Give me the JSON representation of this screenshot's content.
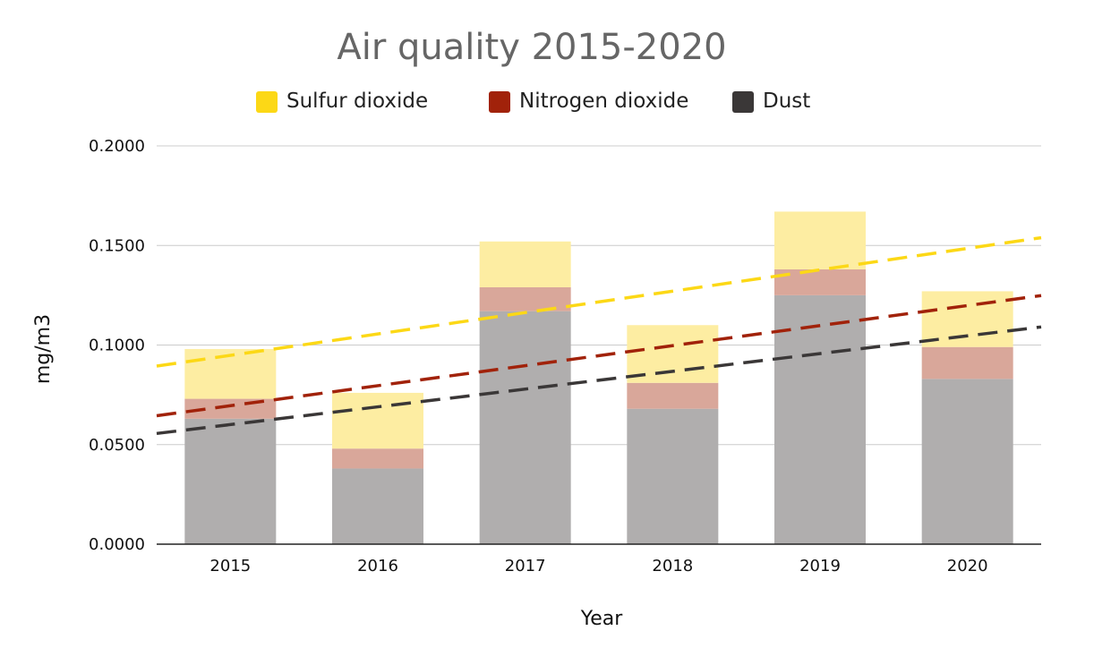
{
  "chart_data": {
    "type": "bar",
    "stacked": true,
    "title": "Air quality 2015-2020",
    "xlabel": "Year",
    "ylabel": "mg/m3",
    "ylim": [
      0,
      0.2
    ],
    "yticks": [
      "0.0000",
      "0.0500",
      "0.1000",
      "0.1500",
      "0.2000"
    ],
    "grid": true,
    "legend_position": "top",
    "categories": [
      "2015",
      "2016",
      "2017",
      "2018",
      "2019",
      "2020"
    ],
    "series": [
      {
        "name": "Dust",
        "values": [
          0.063,
          0.038,
          0.117,
          0.068,
          0.125,
          0.083
        ],
        "color": "#b0aeae",
        "legend_color": "#3a3737",
        "trend_color": "#3a3737"
      },
      {
        "name": "Nitrogen dioxide",
        "values": [
          0.01,
          0.01,
          0.012,
          0.013,
          0.013,
          0.016
        ],
        "color": "#d9a79a",
        "legend_color": "#a1220a",
        "trend_color": "#a1220a"
      },
      {
        "name": "Sulfur dioxide",
        "values": [
          0.025,
          0.028,
          0.023,
          0.029,
          0.029,
          0.028
        ],
        "color": "#fdeda2",
        "legend_color": "#fcd816",
        "trend_color": "#fcd816"
      }
    ],
    "legend_order": [
      "Sulfur dioxide",
      "Nitrogen dioxide",
      "Dust"
    ],
    "trendlines": [
      {
        "series": "Sulfur dioxide",
        "type": "linear"
      },
      {
        "series": "Nitrogen dioxide",
        "type": "linear"
      },
      {
        "series": "Dust",
        "type": "linear"
      }
    ]
  }
}
